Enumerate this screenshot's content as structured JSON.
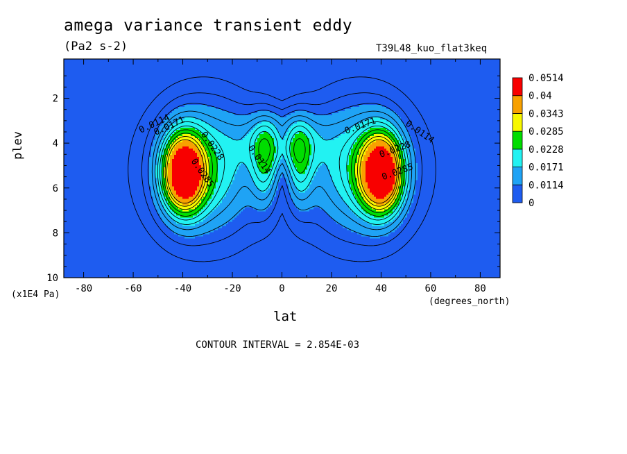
{
  "title": "amega variance transient eddy",
  "units": "(Pa2 s-2)",
  "run_label": "T39L48_kuo_flat3keq",
  "contour_interval": "CONTOUR INTERVAL = 2.854E-03",
  "chart_data": {
    "type": "contour",
    "xlabel": "lat",
    "x_units": "(degrees_north)",
    "ylabel": "plev",
    "y_units": "(x1E4 Pa)",
    "xlim": [
      -88,
      88
    ],
    "ylim": [
      10,
      0.25
    ],
    "x_ticks": [
      -80,
      -60,
      -40,
      -20,
      0,
      20,
      40,
      60,
      80
    ],
    "y_ticks": [
      2,
      4,
      6,
      8,
      10
    ],
    "levels": [
      0,
      0.0114,
      0.0171,
      0.0228,
      0.0285,
      0.0343,
      0.04,
      0.0514
    ],
    "level_labels": [
      "0",
      "0.0114",
      "0.0171",
      "0.0228",
      "0.0285",
      "0.0343",
      "0.04",
      "0.0514"
    ],
    "colors": [
      "#1e5cf0",
      "#1fa3f5",
      "#22f2f2",
      "#00dd00",
      "#f8f800",
      "#f8a100",
      "#f80000"
    ],
    "contour_labels": [
      {
        "text": "0.0114",
        "lat": -51,
        "plev": 3.25
      },
      {
        "text": "0.0171",
        "lat": -45,
        "plev": 3.35
      },
      {
        "text": "0.0228",
        "lat": -29,
        "plev": 4.2
      },
      {
        "text": "0.0285",
        "lat": -33,
        "plev": 5.4
      },
      {
        "text": "0.0114",
        "lat": -10,
        "plev": 4.8
      },
      {
        "text": "0.0171",
        "lat": 32,
        "plev": 3.35
      },
      {
        "text": "0.0114",
        "lat": 55,
        "plev": 3.6
      },
      {
        "text": "0.0228",
        "lat": 46,
        "plev": 4.4
      },
      {
        "text": "0.0285",
        "lat": 47,
        "plev": 5.4
      }
    ],
    "maxima": [
      {
        "lat": -40,
        "plev": 5.3,
        "value": 0.037
      },
      {
        "lat": 40,
        "plev": 5.3,
        "value": 0.037
      }
    ]
  }
}
